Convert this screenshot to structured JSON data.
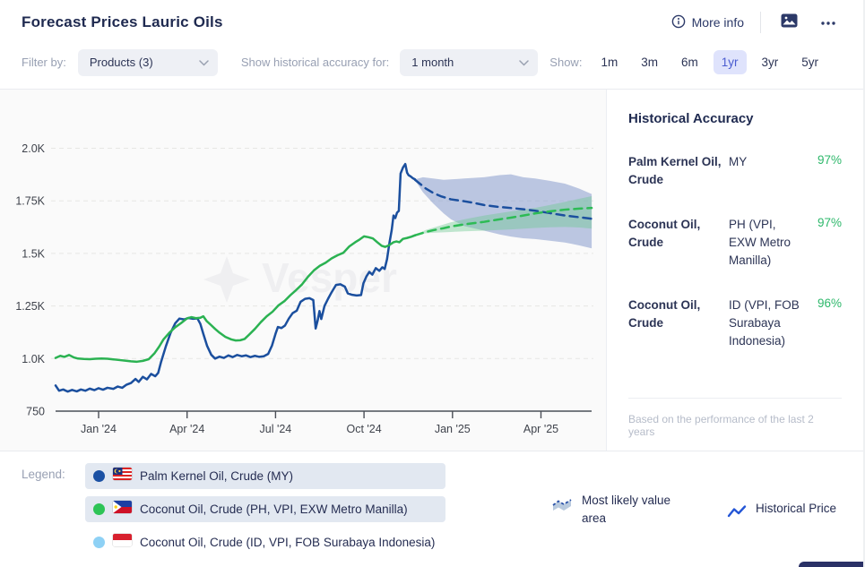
{
  "header": {
    "title": "Forecast Prices Lauric Oils",
    "more_info_label": "More info"
  },
  "filter_bar": {
    "filter_by_label": "Filter by:",
    "products_value": "Products (3)",
    "accuracy_for_label": "Show historical accuracy for:",
    "accuracy_value": "1 month",
    "show_label": "Show:",
    "ranges": [
      "1m",
      "3m",
      "6m",
      "1yr",
      "3yr",
      "5yr"
    ],
    "selected_range": "1yr",
    "selected_bg": "#dfe3fc",
    "selected_color": "#4a5cd0"
  },
  "accuracy_panel": {
    "title": "Historical Accuracy",
    "rows": [
      {
        "product": "Palm Kernel Oil, Crude",
        "region": "MY",
        "accuracy": "97%"
      },
      {
        "product": "Coconut Oil, Crude",
        "region": "PH (VPI, EXW Metro Manilla)",
        "accuracy": "97%"
      },
      {
        "product": "Coconut Oil, Crude",
        "region": "ID (VPI, FOB Surabaya Indonesia)",
        "accuracy": "96%"
      }
    ],
    "footnote": "Based on the performance of the last 2 years"
  },
  "legend": {
    "label": "Legend:",
    "items": [
      {
        "label": "Palm Kernel Oil, Crude (MY)",
        "dot_color": "#1b51a4",
        "flag": "my",
        "highlighted": true
      },
      {
        "label": "Coconut Oil, Crude (PH, VPI, EXW Metro Manilla)",
        "dot_color": "#2dc456",
        "flag": "ph",
        "highlighted": true
      },
      {
        "label": "Coconut Oil, Crude (ID, VPI, FOB Surabaya Indonesia)",
        "dot_color": "#8ed1f5",
        "flag": "id",
        "highlighted": false
      }
    ]
  },
  "chart_key": [
    {
      "icon": "area",
      "label": "Most likely value area"
    },
    {
      "icon": "line",
      "label": "Historical Price"
    }
  ],
  "watermark": "Vesper",
  "chart_data": {
    "type": "line",
    "x_unit": "months (0 = Jan 2024)",
    "x_axis": {
      "ticks": [
        "Jan '24",
        "Apr '24",
        "Jul '24",
        "Oct '24",
        "Jan '25",
        "Apr '25"
      ],
      "tick_mi": [
        0,
        3,
        6,
        9,
        12,
        15
      ],
      "range_mi": [
        -1.46,
        16.72
      ]
    },
    "y_axis": {
      "ticks": [
        "750",
        "1.0K",
        "1.25K",
        "1.5K",
        "1.75K",
        "2.0K"
      ],
      "tick_values": [
        750,
        1000,
        1250,
        1500,
        1750,
        2000
      ]
    },
    "series": [
      {
        "id": "palm-kernel-band",
        "name": "Palm Kernel Oil, Crude (MY) forecast band",
        "kind": "band",
        "color": "rgba(134,154,204,0.55)",
        "upper": [
          [
            10.73,
            1852
          ],
          [
            11.0,
            1862
          ],
          [
            11.34,
            1856
          ],
          [
            11.7,
            1850
          ],
          [
            11.95,
            1852
          ],
          [
            12.4,
            1856
          ],
          [
            13.07,
            1862
          ],
          [
            13.6,
            1872
          ],
          [
            13.98,
            1876
          ],
          [
            14.4,
            1862
          ],
          [
            14.8,
            1856
          ],
          [
            15.3,
            1845
          ],
          [
            15.81,
            1832
          ],
          [
            16.3,
            1808
          ],
          [
            16.72,
            1782
          ]
        ],
        "lower": [
          [
            10.73,
            1848
          ],
          [
            11.0,
            1790
          ],
          [
            11.34,
            1738
          ],
          [
            11.7,
            1690
          ],
          [
            11.95,
            1662
          ],
          [
            12.4,
            1630
          ],
          [
            13.07,
            1608
          ],
          [
            13.6,
            1590
          ],
          [
            13.98,
            1580
          ],
          [
            14.4,
            1572
          ],
          [
            14.8,
            1568
          ],
          [
            15.3,
            1560
          ],
          [
            15.81,
            1552
          ],
          [
            16.3,
            1538
          ],
          [
            16.72,
            1524
          ]
        ]
      },
      {
        "id": "coconut-ph-band",
        "name": "Coconut Oil, Crude (PH) forecast band",
        "kind": "band",
        "color": "rgba(110,200,145,0.42)",
        "upper": [
          [
            10.73,
            1587
          ],
          [
            11.1,
            1612
          ],
          [
            11.34,
            1622
          ],
          [
            11.95,
            1648
          ],
          [
            12.4,
            1662
          ],
          [
            13.07,
            1680
          ],
          [
            13.98,
            1700
          ],
          [
            14.8,
            1716
          ],
          [
            15.3,
            1730
          ],
          [
            15.81,
            1745
          ],
          [
            16.3,
            1760
          ],
          [
            16.72,
            1772
          ]
        ],
        "lower": [
          [
            10.73,
            1583
          ],
          [
            11.1,
            1596
          ],
          [
            11.34,
            1598
          ],
          [
            11.95,
            1602
          ],
          [
            12.4,
            1605
          ],
          [
            13.07,
            1608
          ],
          [
            13.98,
            1614
          ],
          [
            14.8,
            1621
          ],
          [
            15.3,
            1624
          ],
          [
            15.81,
            1626
          ],
          [
            16.3,
            1623
          ],
          [
            16.72,
            1618
          ]
        ]
      },
      {
        "id": "palm-kernel-forecast",
        "name": "Palm Kernel Oil, Crude (MY) forecast",
        "kind": "line",
        "dashed": true,
        "color": "#1b4f9e",
        "points": [
          [
            10.73,
            1850
          ],
          [
            11.1,
            1808
          ],
          [
            11.34,
            1788
          ],
          [
            11.6,
            1772
          ],
          [
            11.95,
            1757
          ],
          [
            12.4,
            1748
          ],
          [
            12.8,
            1738
          ],
          [
            13.07,
            1730
          ],
          [
            13.5,
            1722
          ],
          [
            13.98,
            1716
          ],
          [
            14.4,
            1710
          ],
          [
            14.8,
            1703
          ],
          [
            15.29,
            1692
          ],
          [
            15.81,
            1680
          ],
          [
            16.3,
            1672
          ],
          [
            16.72,
            1665
          ]
        ]
      },
      {
        "id": "coconut-ph-forecast",
        "name": "Coconut Oil, Crude (PH) forecast",
        "kind": "line",
        "dashed": true,
        "color": "#2dbb55",
        "points": [
          [
            10.73,
            1586
          ],
          [
            11.1,
            1602
          ],
          [
            11.34,
            1610
          ],
          [
            11.7,
            1620
          ],
          [
            11.95,
            1628
          ],
          [
            12.4,
            1638
          ],
          [
            13.07,
            1650
          ],
          [
            13.5,
            1660
          ],
          [
            13.98,
            1670
          ],
          [
            14.4,
            1680
          ],
          [
            14.8,
            1690
          ],
          [
            15.3,
            1700
          ],
          [
            15.81,
            1708
          ],
          [
            16.3,
            1713
          ],
          [
            16.72,
            1716
          ]
        ]
      },
      {
        "id": "palm-kernel-history",
        "name": "Palm Kernel Oil, Crude (MY)",
        "kind": "line",
        "color": "#1b4f9e",
        "points": [
          [
            -1.46,
            872
          ],
          [
            -1.34,
            847
          ],
          [
            -1.2,
            853
          ],
          [
            -1.05,
            843
          ],
          [
            -0.9,
            851
          ],
          [
            -0.74,
            844
          ],
          [
            -0.6,
            853
          ],
          [
            -0.45,
            847
          ],
          [
            -0.3,
            857
          ],
          [
            -0.14,
            850
          ],
          [
            0.0,
            859
          ],
          [
            0.15,
            852
          ],
          [
            0.3,
            861
          ],
          [
            0.5,
            856
          ],
          [
            0.65,
            867
          ],
          [
            0.8,
            861
          ],
          [
            0.95,
            876
          ],
          [
            1.1,
            884
          ],
          [
            1.25,
            903
          ],
          [
            1.36,
            889
          ],
          [
            1.5,
            913
          ],
          [
            1.64,
            901
          ],
          [
            1.78,
            927
          ],
          [
            1.92,
            916
          ],
          [
            2.02,
            932
          ],
          [
            2.12,
            985
          ],
          [
            2.28,
            1058
          ],
          [
            2.44,
            1122
          ],
          [
            2.6,
            1168
          ],
          [
            2.74,
            1190
          ],
          [
            2.9,
            1186
          ],
          [
            3.05,
            1193
          ],
          [
            3.2,
            1189
          ],
          [
            3.35,
            1191
          ],
          [
            3.45,
            1165
          ],
          [
            3.55,
            1118
          ],
          [
            3.68,
            1060
          ],
          [
            3.82,
            1018
          ],
          [
            3.95,
            1000
          ],
          [
            4.1,
            1009
          ],
          [
            4.25,
            1003
          ],
          [
            4.4,
            1015
          ],
          [
            4.55,
            1007
          ],
          [
            4.7,
            1017
          ],
          [
            4.85,
            1011
          ],
          [
            5.0,
            1015
          ],
          [
            5.15,
            1007
          ],
          [
            5.3,
            1013
          ],
          [
            5.45,
            1008
          ],
          [
            5.6,
            1011
          ],
          [
            5.75,
            1022
          ],
          [
            5.88,
            1062
          ],
          [
            6.0,
            1118
          ],
          [
            6.08,
            1150
          ],
          [
            6.2,
            1145
          ],
          [
            6.32,
            1157
          ],
          [
            6.45,
            1190
          ],
          [
            6.58,
            1216
          ],
          [
            6.72,
            1228
          ],
          [
            6.85,
            1270
          ],
          [
            7.0,
            1284
          ],
          [
            7.15,
            1287
          ],
          [
            7.28,
            1278
          ],
          [
            7.36,
            1143
          ],
          [
            7.43,
            1182
          ],
          [
            7.49,
            1226
          ],
          [
            7.55,
            1188
          ],
          [
            7.66,
            1250
          ],
          [
            7.78,
            1284
          ],
          [
            7.9,
            1315
          ],
          [
            8.05,
            1350
          ],
          [
            8.2,
            1353
          ],
          [
            8.35,
            1342
          ],
          [
            8.45,
            1310
          ],
          [
            8.6,
            1303
          ],
          [
            8.75,
            1300
          ],
          [
            8.9,
            1302
          ],
          [
            8.98,
            1358
          ],
          [
            9.08,
            1390
          ],
          [
            9.18,
            1412
          ],
          [
            9.28,
            1399
          ],
          [
            9.4,
            1430
          ],
          [
            9.52,
            1417
          ],
          [
            9.62,
            1434
          ],
          [
            9.7,
            1426
          ],
          [
            9.78,
            1472
          ],
          [
            9.86,
            1548
          ],
          [
            9.94,
            1612
          ],
          [
            10.0,
            1680
          ],
          [
            10.06,
            1668
          ],
          [
            10.12,
            1694
          ],
          [
            10.18,
            1702
          ],
          [
            10.24,
            1880
          ],
          [
            10.32,
            1908
          ],
          [
            10.4,
            1925
          ],
          [
            10.46,
            1884
          ],
          [
            10.51,
            1872
          ],
          [
            10.58,
            1866
          ],
          [
            10.65,
            1858
          ],
          [
            10.73,
            1852
          ]
        ]
      },
      {
        "id": "coconut-ph-history",
        "name": "Coconut Oil, Crude (PH, VPI, EXW Metro Manilla)",
        "kind": "line",
        "color": "#2bb252",
        "points": [
          [
            -1.46,
            1003
          ],
          [
            -1.3,
            1013
          ],
          [
            -1.16,
            1008
          ],
          [
            -1.0,
            1017
          ],
          [
            -0.85,
            1006
          ],
          [
            -0.7,
            1000
          ],
          [
            -0.5,
            998
          ],
          [
            -0.3,
            997
          ],
          [
            -0.1,
            999
          ],
          [
            0.1,
            1000
          ],
          [
            0.3,
            999
          ],
          [
            0.5,
            996
          ],
          [
            0.7,
            993
          ],
          [
            0.9,
            990
          ],
          [
            1.1,
            987
          ],
          [
            1.3,
            985
          ],
          [
            1.5,
            989
          ],
          [
            1.7,
            997
          ],
          [
            1.9,
            1026
          ],
          [
            2.05,
            1056
          ],
          [
            2.2,
            1091
          ],
          [
            2.4,
            1123
          ],
          [
            2.6,
            1149
          ],
          [
            2.8,
            1169
          ],
          [
            3.0,
            1191
          ],
          [
            3.15,
            1197
          ],
          [
            3.3,
            1192
          ],
          [
            3.45,
            1194
          ],
          [
            3.55,
            1201
          ],
          [
            3.66,
            1179
          ],
          [
            3.8,
            1161
          ],
          [
            3.95,
            1141
          ],
          [
            4.1,
            1123
          ],
          [
            4.3,
            1103
          ],
          [
            4.5,
            1091
          ],
          [
            4.65,
            1086
          ],
          [
            4.8,
            1087
          ],
          [
            4.95,
            1093
          ],
          [
            5.1,
            1113
          ],
          [
            5.3,
            1141
          ],
          [
            5.5,
            1173
          ],
          [
            5.7,
            1201
          ],
          [
            5.9,
            1223
          ],
          [
            6.1,
            1253
          ],
          [
            6.3,
            1273
          ],
          [
            6.5,
            1301
          ],
          [
            6.7,
            1326
          ],
          [
            6.9,
            1353
          ],
          [
            7.1,
            1389
          ],
          [
            7.3,
            1419
          ],
          [
            7.5,
            1441
          ],
          [
            7.7,
            1456
          ],
          [
            7.9,
            1476
          ],
          [
            8.1,
            1491
          ],
          [
            8.3,
            1503
          ],
          [
            8.5,
            1533
          ],
          [
            8.7,
            1553
          ],
          [
            8.85,
            1566
          ],
          [
            9.0,
            1581
          ],
          [
            9.15,
            1577
          ],
          [
            9.3,
            1571
          ],
          [
            9.45,
            1553
          ],
          [
            9.6,
            1536
          ],
          [
            9.72,
            1531
          ],
          [
            9.85,
            1539
          ],
          [
            10.0,
            1553
          ],
          [
            10.1,
            1557
          ],
          [
            10.2,
            1553
          ],
          [
            10.32,
            1569
          ],
          [
            10.45,
            1573
          ],
          [
            10.6,
            1579
          ],
          [
            10.73,
            1586
          ]
        ]
      }
    ]
  }
}
